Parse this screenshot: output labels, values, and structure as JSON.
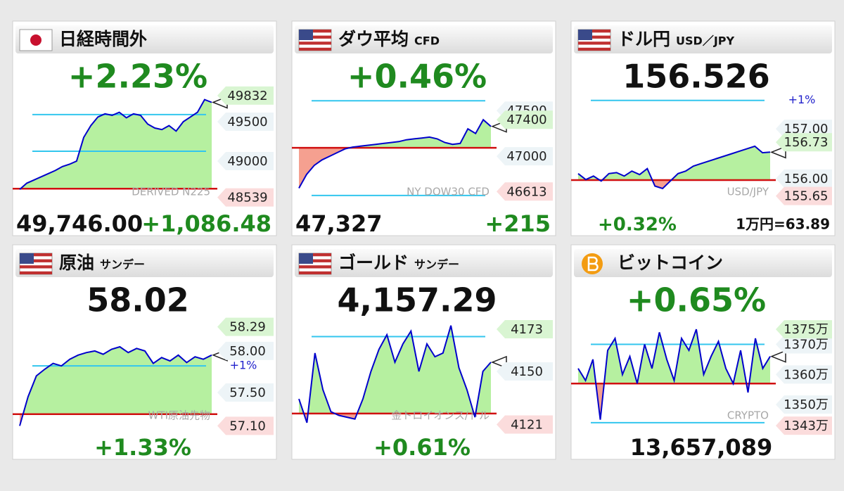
{
  "chart_data": [
    {
      "type": "line",
      "title": "日経時間外",
      "headline": "+2.23%",
      "headline_color": "#1f8a1f",
      "footer": [
        "49,746.00",
        "+1,086.48"
      ],
      "watermark": "DERIVED N225",
      "values": [
        48640,
        48720,
        48760,
        48800,
        48840,
        48880,
        48930,
        48960,
        49000,
        49300,
        49450,
        49560,
        49600,
        49580,
        49620,
        49550,
        49600,
        49580,
        49470,
        49420,
        49400,
        49450,
        49380,
        49500,
        49560,
        49620,
        49780,
        49746
      ],
      "ylim": [
        48500,
        49884
      ],
      "yticks": [
        49500,
        49000
      ],
      "label_high": 49832,
      "label_low": 48539,
      "base": 48650,
      "bands": [
        49590,
        49125
      ],
      "color": "#0000cc"
    },
    {
      "type": "line",
      "title": "ダウ平均",
      "subtitle": "CFD",
      "headline": "+0.46%",
      "headline_color": "#1f8a1f",
      "footer": [
        "47,327",
        "+215"
      ],
      "watermark": "NY DOW30 CFD",
      "values": [
        46650,
        46800,
        46900,
        46960,
        47000,
        47040,
        47080,
        47100,
        47110,
        47120,
        47130,
        47140,
        47150,
        47160,
        47180,
        47190,
        47200,
        47210,
        47190,
        47150,
        47130,
        47140,
        47300,
        47250,
        47400,
        47327
      ],
      "ylim": [
        46515,
        47710
      ],
      "yticks": [
        47500,
        47000
      ],
      "label_high": 47400,
      "label_low": 46613,
      "base": 47092,
      "bands": [
        47608,
        46570
      ],
      "color": "#0000cc"
    },
    {
      "type": "line",
      "title": "ドル円",
      "subtitle": "USD／JPY",
      "headline": "156.526",
      "headline_color": "#111111",
      "footer": [
        "+0.32%",
        "1万円=63.89"
      ],
      "watermark": "USD/JPY",
      "values": [
        156.1,
        155.98,
        156.05,
        155.95,
        156.1,
        156.12,
        156.05,
        156.15,
        156.08,
        156.2,
        155.85,
        155.8,
        155.95,
        156.1,
        156.15,
        156.25,
        156.3,
        156.35,
        156.4,
        156.45,
        156.5,
        156.55,
        156.6,
        156.65,
        156.52,
        156.53
      ],
      "ylim": [
        155.56,
        157.75
      ],
      "yticks": [
        {
          "value": 157,
          "label": "157.00"
        },
        {
          "value": 156,
          "label": "156.00"
        }
      ],
      "label_high": 156.73,
      "label_low": 155.65,
      "base": 155.97,
      "bands": [
        157.57
      ],
      "band_label": "+1%",
      "color": "#0000cc"
    },
    {
      "type": "line",
      "title": "原油",
      "subtitle": "サンデー",
      "headline": "58.02",
      "headline_color": "#111111",
      "footer": [
        "+1.33%"
      ],
      "watermark": "WTI原油先物",
      "values": [
        57.1,
        57.45,
        57.7,
        57.78,
        57.85,
        57.82,
        57.9,
        57.95,
        57.98,
        58.0,
        57.96,
        58.02,
        58.05,
        57.98,
        58.03,
        58.0,
        57.85,
        57.92,
        57.88,
        57.95,
        57.86,
        57.93,
        57.9,
        57.95
      ],
      "ylim": [
        57.12,
        58.43
      ],
      "yticks": [
        {
          "value": 58,
          "label": "58.00"
        },
        {
          "value": 57.5,
          "label": "57.50"
        }
      ],
      "label_high": 58.29,
      "label_low": {
        "value": 57.1,
        "label": "57.10"
      },
      "base": 57.24,
      "bands": [
        57.82
      ],
      "band_label": "+1%",
      "color": "#0000cc"
    },
    {
      "type": "line",
      "title": "ゴールド",
      "subtitle": "サンデー",
      "headline": "4,157.29",
      "headline_color": "#111111",
      "footer": [
        "+0.61%"
      ],
      "watermark": "金トロイオンス/ドル",
      "values": [
        4135,
        4122,
        4160,
        4140,
        4128,
        4126,
        4125,
        4124,
        4135,
        4150,
        4162,
        4170,
        4155,
        4165,
        4172,
        4150,
        4165,
        4158,
        4160,
        4175,
        4152,
        4140,
        4125,
        4150,
        4155
      ],
      "ylim": [
        4121.2,
        4180.7
      ],
      "yticks": [
        4150
      ],
      "label_high": 4173,
      "label_low": 4121,
      "base": 4127,
      "bands": [
        4169
      ],
      "color": "#0000cc"
    },
    {
      "type": "line",
      "title": "ビットコイン",
      "headline": "+0.65%",
      "headline_color": "#1f8a1f",
      "footer": [
        "13,657,089"
      ],
      "watermark": "CRYPTO",
      "values": [
        1362,
        1358,
        1365,
        1345,
        1368,
        1372,
        1360,
        1366,
        1357,
        1370,
        1362,
        1374,
        1365,
        1358,
        1372,
        1368,
        1375,
        1360,
        1366,
        1371,
        1362,
        1357,
        1368,
        1354,
        1372,
        1362,
        1366
      ],
      "ylim": [
        1343.5,
        1379.7
      ],
      "yticks": [
        {
          "value": 1370,
          "label": "1370万"
        },
        {
          "value": 1360,
          "label": "1360万"
        },
        {
          "value": 1350,
          "label": "1350万"
        }
      ],
      "label_high": {
        "value": 1375,
        "label": "1375万"
      },
      "label_low": {
        "value": 1343,
        "label": "1343万"
      },
      "base": 1357,
      "bands": [
        1370,
        1344
      ],
      "color": "#0000cc"
    }
  ]
}
